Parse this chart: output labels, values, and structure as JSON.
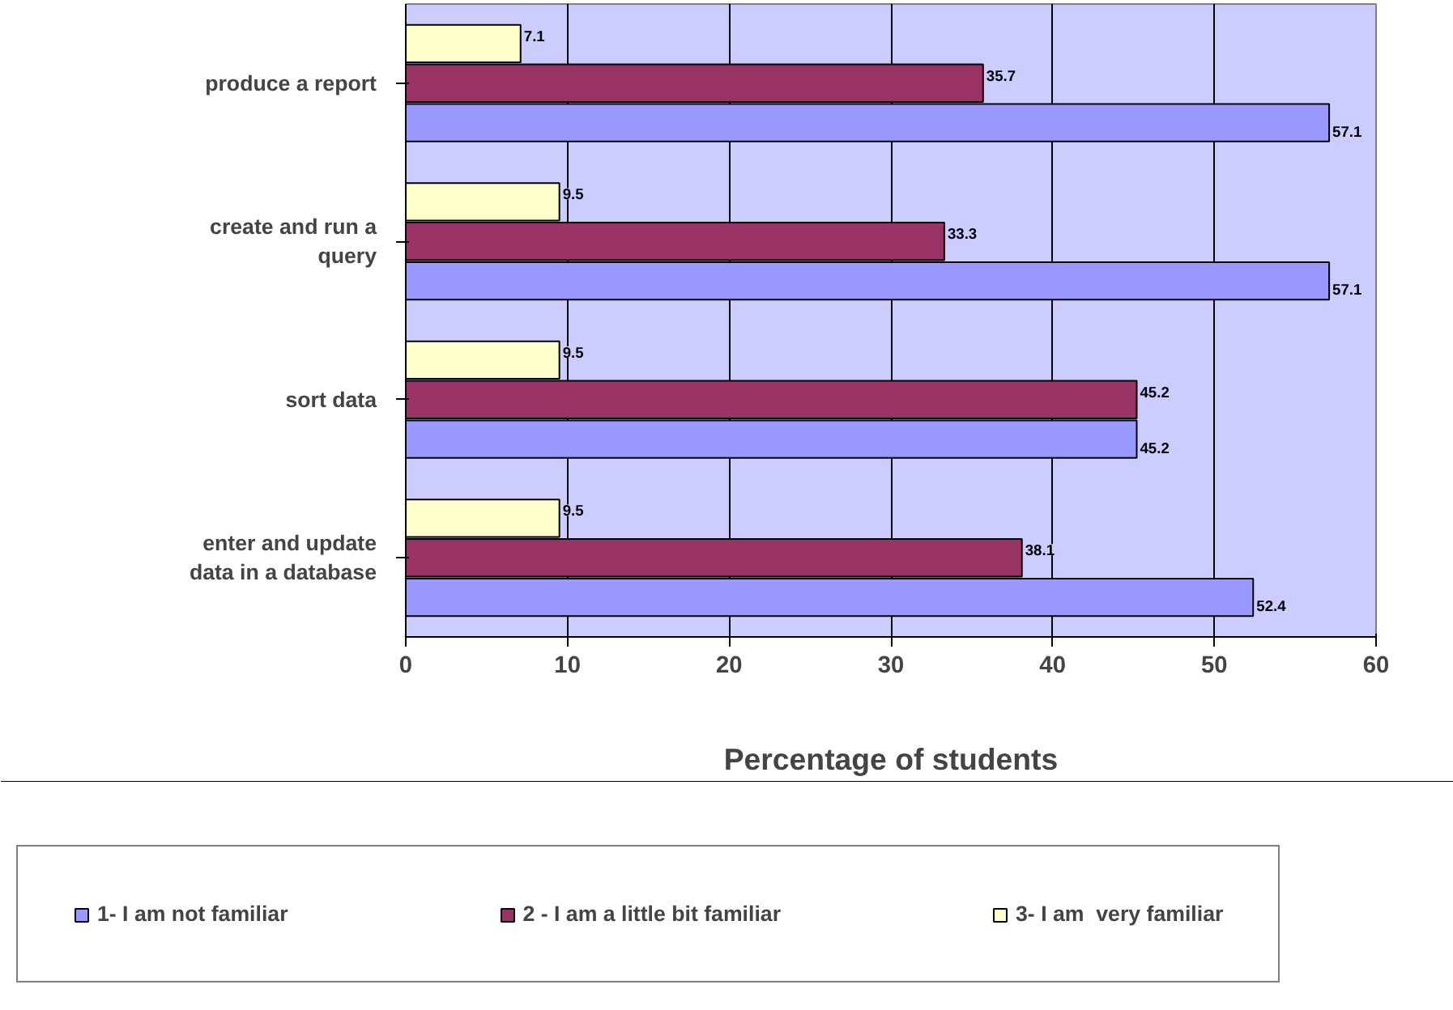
{
  "chart_data": {
    "type": "bar",
    "orientation": "horizontal",
    "xlabel": "Percentage of students",
    "categories": [
      "produce a report",
      "create and run a query",
      "sort data",
      "enter and update data in a database"
    ],
    "series": [
      {
        "name": "1- I am not familiar",
        "color": "#9999ff",
        "values": [
          57.1,
          57.1,
          45.2,
          52.4
        ]
      },
      {
        "name": "2 - I am a little bit familiar",
        "color": "#993366",
        "values": [
          35.7,
          33.3,
          45.2,
          38.1
        ]
      },
      {
        "name": "3- I am  very familiar",
        "color": "#ffffcc",
        "values": [
          7.1,
          9.5,
          9.5,
          9.5
        ]
      }
    ],
    "xlim": [
      0,
      60
    ],
    "xticks": [
      0,
      10,
      20,
      30,
      40,
      50,
      60
    ],
    "grid": "x",
    "legend": "bottom",
    "data_labels": true
  }
}
